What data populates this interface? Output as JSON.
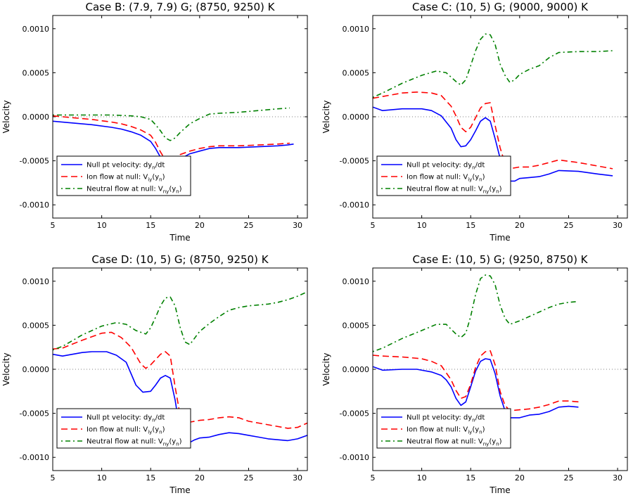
{
  "colors": {
    "null_pt": "#0000ff",
    "ion": "#ff0000",
    "neutral": "#008000",
    "zero_line": "#808080"
  },
  "chart_data": [
    {
      "type": "line",
      "title": "Case B: (7.9, 7.9) G; (8750, 9250) K",
      "xlabel": "Time",
      "ylabel": "Velocity",
      "xlim": [
        5,
        31
      ],
      "ylim": [
        -0.00115,
        0.00115
      ],
      "xticks": [
        "5",
        "10",
        "15",
        "20",
        "25",
        "30"
      ],
      "yticks": [
        "0.0010",
        "0.0005",
        "0.0000",
        "-0.0005",
        "-0.0010"
      ],
      "legend_position": "lower-left",
      "series": [
        {
          "name": "Null pt velocity: dy_n/dt",
          "label": "Null pt velocity: dy",
          "sub": "n",
          "tail": "/dt",
          "x": [
            5,
            7,
            9,
            11,
            12,
            13,
            14,
            15,
            15.5,
            16,
            16.5,
            17,
            17.5,
            18,
            18.5,
            19,
            20,
            21,
            22,
            24,
            26,
            28,
            29,
            29.6
          ],
          "y": [
            -5e-05,
            -7e-05,
            -9e-05,
            -0.00012,
            -0.00014,
            -0.00017,
            -0.00021,
            -0.00028,
            -0.00036,
            -0.00046,
            -0.00054,
            -0.00057,
            -0.00054,
            -0.00049,
            -0.00045,
            -0.00042,
            -0.00039,
            -0.00036,
            -0.00035,
            -0.00035,
            -0.00034,
            -0.00033,
            -0.00032,
            -0.00031
          ]
        },
        {
          "name": "Ion flow at null: V_iy(y_n)",
          "label": "Ion flow at null: V",
          "sub": "iy",
          "tail": "(y",
          "x": [
            5,
            7,
            9,
            11,
            12,
            13,
            14,
            15,
            15.5,
            16,
            16.5,
            17,
            17.5,
            18,
            19,
            20,
            21,
            22,
            24,
            26,
            28,
            29.2
          ],
          "y": [
            1e-05,
            -1e-05,
            -3e-05,
            -6e-05,
            -8e-05,
            -0.00011,
            -0.00015,
            -0.00021,
            -0.00029,
            -0.0004,
            -0.00049,
            -0.00052,
            -0.00049,
            -0.00043,
            -0.00039,
            -0.00036,
            -0.00034,
            -0.00033,
            -0.00033,
            -0.00032,
            -0.00031,
            -0.0003
          ]
        },
        {
          "name": "Neutral flow at null: V_ny(y_n)",
          "label": "Neutral flow at null: V",
          "sub": "ny",
          "tail": "(y",
          "x": [
            5,
            7,
            9,
            11,
            13,
            14,
            15,
            15.5,
            16,
            16.5,
            17,
            17.5,
            18,
            19,
            20,
            21,
            22,
            24,
            26,
            28,
            29.2
          ],
          "y": [
            2e-05,
            2e-05,
            2e-05,
            2e-05,
            1e-05,
            0.0,
            -3e-05,
            -9e-05,
            -0.00016,
            -0.00024,
            -0.00027,
            -0.00024,
            -0.00018,
            -8e-05,
            -2e-05,
            3e-05,
            4e-05,
            5e-05,
            7e-05,
            9e-05,
            0.0001
          ]
        }
      ]
    },
    {
      "type": "line",
      "title": "Case C: (10, 5) G; (9000, 9000) K",
      "xlabel": "Time",
      "ylabel": "Velocity",
      "xlim": [
        5,
        31
      ],
      "ylim": [
        -0.00115,
        0.00115
      ],
      "xticks": [
        "5",
        "10",
        "15",
        "20",
        "25",
        "30"
      ],
      "yticks": [
        "0.0010",
        "0.0005",
        "0.0000",
        "-0.0005",
        "-0.0010"
      ],
      "legend_position": "lower-left",
      "series": [
        {
          "name": "Null pt velocity: dy_n/dt",
          "label": "Null pt velocity: dy",
          "sub": "n",
          "tail": "/dt",
          "x": [
            5,
            6,
            8,
            10,
            11,
            12,
            13,
            13.5,
            14,
            14.5,
            15,
            15.5,
            16,
            16.5,
            17,
            17.5,
            18,
            18.5,
            19,
            19.5,
            20,
            21,
            22,
            23,
            24,
            26,
            28,
            29.5
          ],
          "y": [
            0.00011,
            7e-05,
            9e-05,
            9e-05,
            7e-05,
            1e-05,
            -0.00013,
            -0.00026,
            -0.00034,
            -0.00033,
            -0.00026,
            -0.00016,
            -5e-05,
            -1e-05,
            -5e-05,
            -0.00025,
            -0.00047,
            -0.00066,
            -0.00073,
            -0.00073,
            -0.0007,
            -0.00069,
            -0.00068,
            -0.00065,
            -0.00061,
            -0.00062,
            -0.00065,
            -0.00067
          ]
        },
        {
          "name": "Ion flow at null: V_iy(y_n)",
          "label": "Ion flow at null: V",
          "sub": "iy",
          "tail": "(y",
          "x": [
            5,
            6,
            8,
            9.5,
            11,
            12,
            13,
            13.5,
            14,
            14.5,
            15,
            15.5,
            16,
            16.5,
            17,
            17.5,
            18,
            18.5,
            19,
            19.5,
            20,
            21,
            22,
            23,
            24,
            26,
            28,
            29.5
          ],
          "y": [
            0.00021,
            0.00023,
            0.00027,
            0.00028,
            0.00027,
            0.00024,
            0.00012,
            1e-05,
            -0.00012,
            -0.00017,
            -0.00012,
            -1e-05,
            0.0001,
            0.00015,
            0.00016,
            -0.0001,
            -0.00035,
            -0.00053,
            -0.00059,
            -0.00058,
            -0.00057,
            -0.00057,
            -0.00055,
            -0.00052,
            -0.00049,
            -0.00052,
            -0.00056,
            -0.00059
          ]
        },
        {
          "name": "Neutral flow at null: V_ny(y_n)",
          "label": "Neutral flow at null: V",
          "sub": "ny",
          "tail": "(y",
          "x": [
            5,
            6,
            8,
            10,
            11.5,
            12.5,
            13.5,
            14,
            14.5,
            15,
            15.5,
            16,
            16.5,
            17,
            17.5,
            18,
            18.5,
            19,
            19.5,
            20,
            21,
            22,
            23,
            24,
            26,
            28,
            29.5
          ],
          "y": [
            0.00022,
            0.00027,
            0.00038,
            0.00047,
            0.00052,
            0.0005,
            0.0004,
            0.00036,
            0.00042,
            0.00058,
            0.00075,
            0.00088,
            0.00094,
            0.00093,
            0.00082,
            0.0006,
            0.00047,
            0.00039,
            0.00042,
            0.00048,
            0.00054,
            0.00058,
            0.00067,
            0.00073,
            0.00074,
            0.00074,
            0.00075
          ]
        }
      ]
    },
    {
      "type": "line",
      "title": "Case D: (10, 5) G; (8750, 9250) K",
      "xlabel": "Time",
      "ylabel": "Velocity",
      "xlim": [
        5,
        31
      ],
      "ylim": [
        -0.00115,
        0.00115
      ],
      "xticks": [
        "5",
        "10",
        "15",
        "20",
        "25",
        "30"
      ],
      "yticks": [
        "0.0010",
        "0.0005",
        "0.0000",
        "-0.0005",
        "-0.0010"
      ],
      "legend_position": "lower-left",
      "series": [
        {
          "name": "Null pt velocity: dy_n/dt",
          "label": "Null pt velocity: dy",
          "sub": "n",
          "tail": "/dt",
          "x": [
            5,
            6,
            8,
            9,
            10.5,
            11.5,
            12.5,
            13.5,
            14.2,
            15,
            15.5,
            16,
            16.5,
            17,
            17.5,
            18,
            18.5,
            19,
            19.5,
            20,
            21,
            22,
            23,
            24,
            25,
            26,
            27,
            28,
            29,
            30,
            31
          ],
          "y": [
            0.00017,
            0.00015,
            0.00019,
            0.0002,
            0.0002,
            0.00016,
            8e-05,
            -0.00018,
            -0.00026,
            -0.00025,
            -0.00018,
            -0.0001,
            -7e-05,
            -0.0001,
            -0.00035,
            -0.0007,
            -0.00084,
            -0.00083,
            -0.0008,
            -0.00078,
            -0.00077,
            -0.00074,
            -0.00072,
            -0.00073,
            -0.00075,
            -0.00077,
            -0.00079,
            -0.0008,
            -0.00081,
            -0.00079,
            -0.00075
          ]
        },
        {
          "name": "Ion flow at null: V_iy(y_n)",
          "label": "Ion flow at null: V",
          "sub": "iy",
          "tail": "(y",
          "x": [
            5,
            6,
            8,
            10,
            11,
            12,
            13,
            14,
            14.5,
            15,
            15.5,
            16,
            16.5,
            17,
            17.5,
            18,
            18.5,
            19,
            20,
            21,
            22,
            23,
            24,
            25,
            26,
            27,
            28,
            29,
            30,
            31
          ],
          "y": [
            0.00023,
            0.00024,
            0.00033,
            0.00041,
            0.00042,
            0.00036,
            0.00025,
            6e-05,
            1e-05,
            5e-05,
            0.00011,
            0.00017,
            0.0002,
            0.00015,
            -0.0002,
            -0.00052,
            -0.0006,
            -0.0006,
            -0.00058,
            -0.00057,
            -0.00055,
            -0.00054,
            -0.00055,
            -0.00059,
            -0.00061,
            -0.00063,
            -0.00065,
            -0.00067,
            -0.00066,
            -0.00061
          ]
        },
        {
          "name": "Neutral flow at null: V_ny(y_n)",
          "label": "Neutral flow at null: V",
          "sub": "ny",
          "tail": "(y",
          "x": [
            5,
            6,
            8,
            10,
            11.5,
            12.5,
            13.5,
            14.5,
            15,
            15.5,
            16,
            16.5,
            17,
            17.5,
            18,
            18.5,
            19,
            20,
            21,
            22,
            23,
            24,
            25,
            26,
            27,
            28,
            29,
            30,
            31
          ],
          "y": [
            0.00022,
            0.00026,
            0.00039,
            0.00049,
            0.00053,
            0.00051,
            0.00044,
            0.0004,
            0.00047,
            0.00059,
            0.00072,
            0.00081,
            0.00082,
            0.00072,
            0.00048,
            0.00031,
            0.00028,
            0.00043,
            0.00052,
            0.0006,
            0.00067,
            0.0007,
            0.00072,
            0.00073,
            0.00074,
            0.00076,
            0.00079,
            0.00083,
            0.00088
          ]
        }
      ]
    },
    {
      "type": "line",
      "title": "Case E: (10, 5) G; (9250, 8750) K",
      "xlabel": "Time",
      "ylabel": "Velocity",
      "xlim": [
        5,
        31
      ],
      "ylim": [
        -0.00115,
        0.00115
      ],
      "xticks": [
        "5",
        "10",
        "15",
        "20",
        "25",
        "30"
      ],
      "yticks": [
        "0.0010",
        "0.0005",
        "0.0000",
        "-0.0005",
        "-0.0010"
      ],
      "legend_position": "lower-left",
      "series": [
        {
          "name": "Null pt velocity: dy_n/dt",
          "label": "Null pt velocity: dy",
          "sub": "n",
          "tail": "/dt",
          "x": [
            5,
            6,
            8,
            9.5,
            11,
            12,
            12.5,
            13,
            13.5,
            14,
            14.5,
            15,
            15.5,
            16,
            16.5,
            17,
            17.5,
            18,
            18.5,
            19,
            20,
            21,
            22,
            23,
            24,
            25,
            26
          ],
          "y": [
            3e-05,
            -1e-05,
            0.0,
            0.0,
            -3e-05,
            -7e-05,
            -0.00012,
            -0.0002,
            -0.00033,
            -0.00041,
            -0.00037,
            -0.0002,
            -2e-05,
            9e-05,
            0.00012,
            0.00011,
            -5e-05,
            -0.0003,
            -0.00047,
            -0.00055,
            -0.00055,
            -0.00052,
            -0.00051,
            -0.00048,
            -0.00043,
            -0.00042,
            -0.00043
          ]
        },
        {
          "name": "Ion flow at null: V_iy(y_n)",
          "label": "Ion flow at null: V",
          "sub": "iy",
          "tail": "(y",
          "x": [
            5,
            6,
            8,
            10,
            11,
            12,
            13,
            13.5,
            14,
            14.5,
            15,
            15.5,
            16,
            16.5,
            17,
            17.5,
            18,
            18.5,
            19,
            20,
            21,
            22,
            23,
            24,
            25,
            26
          ],
          "y": [
            0.00016,
            0.00015,
            0.00014,
            0.00012,
            9e-05,
            4e-05,
            -0.00012,
            -0.00024,
            -0.00033,
            -0.00031,
            -0.00017,
            2e-05,
            0.00015,
            0.0002,
            0.00021,
            5e-05,
            -0.00025,
            -0.00041,
            -0.00047,
            -0.00046,
            -0.00045,
            -0.00043,
            -0.0004,
            -0.00036,
            -0.00036,
            -0.00037
          ]
        },
        {
          "name": "Neutral flow at null: V_ny(y_n)",
          "label": "Neutral flow at null: V",
          "sub": "ny",
          "tail": "(y",
          "x": [
            5,
            6,
            8,
            10,
            11.5,
            12.5,
            13.5,
            14,
            14.5,
            15,
            15.5,
            16,
            16.5,
            17,
            17.5,
            18,
            18.5,
            19,
            20,
            21,
            22,
            23,
            24,
            25,
            26
          ],
          "y": [
            0.0002,
            0.00024,
            0.00035,
            0.00044,
            0.00051,
            0.00051,
            0.0004,
            0.00036,
            0.00041,
            0.0006,
            0.00085,
            0.00103,
            0.00107,
            0.00106,
            0.00096,
            0.00073,
            0.00058,
            0.00051,
            0.00055,
            0.0006,
            0.00065,
            0.0007,
            0.00074,
            0.00076,
            0.00077
          ]
        }
      ]
    }
  ]
}
